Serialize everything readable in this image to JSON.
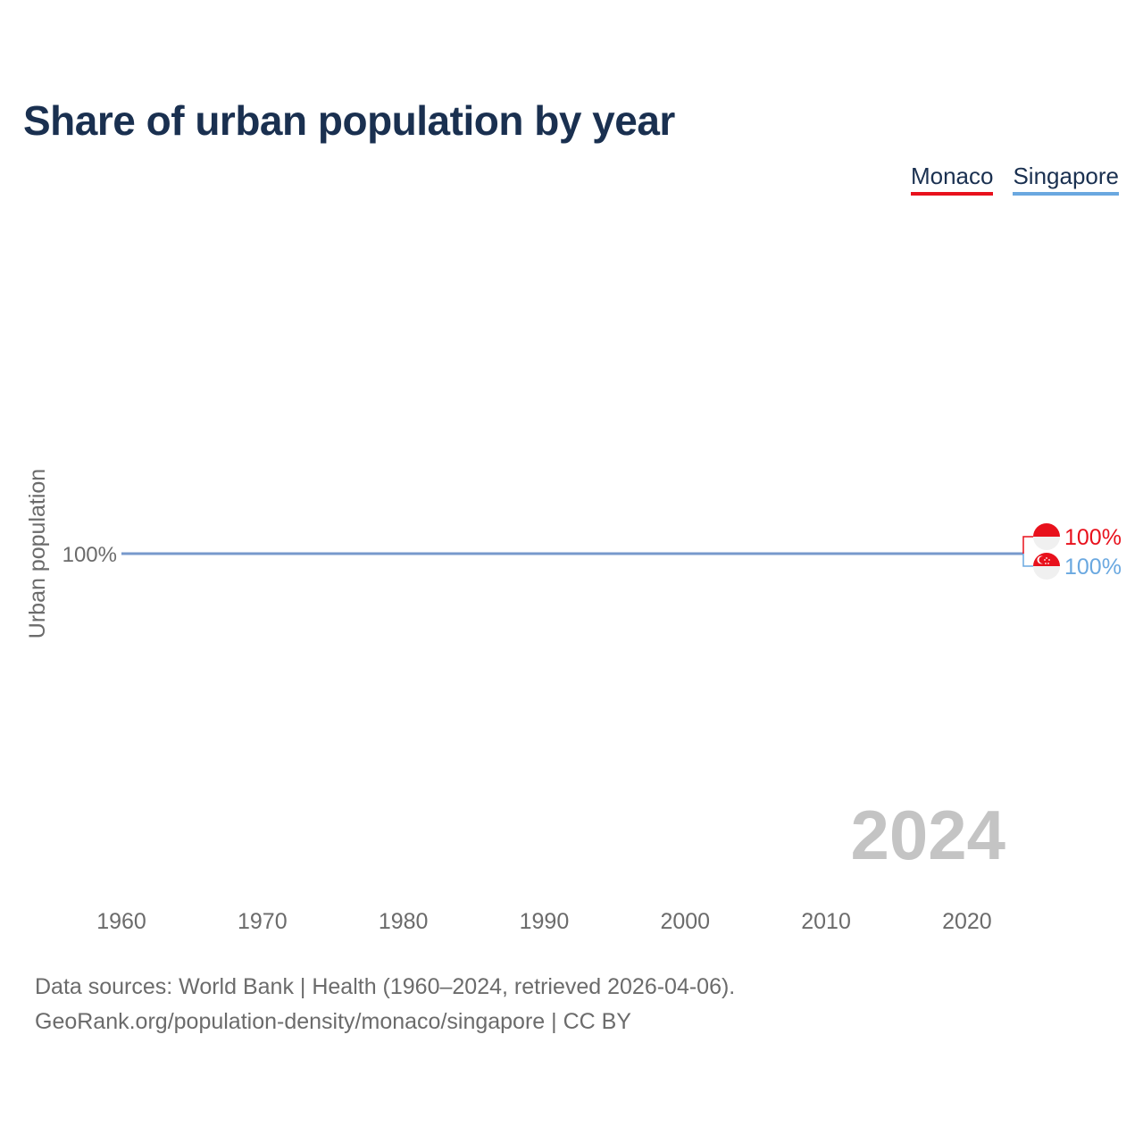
{
  "chart_data": {
    "type": "line",
    "title": "Share of urban population by year",
    "ylabel": "Urban population",
    "xlabel": "",
    "x_ticks": [
      1960,
      1970,
      1980,
      1990,
      2000,
      2010,
      2020
    ],
    "y_ticks": [
      100
    ],
    "y_tick_labels": [
      "100%"
    ],
    "xlim": [
      1960,
      2024
    ],
    "ylim": [
      0,
      200
    ],
    "year_watermark": "2024",
    "series": [
      {
        "name": "Monaco",
        "color": "#e8111c",
        "x": [
          1960,
          2024
        ],
        "values": [
          100,
          100
        ],
        "end_label": "100%",
        "flag": "monaco-flag-icon"
      },
      {
        "name": "Singapore",
        "color": "#6aa8e0",
        "x": [
          1960,
          2024
        ],
        "values": [
          100,
          100
        ],
        "end_label": "100%",
        "flag": "singapore-flag-icon"
      }
    ],
    "legend": [
      "Monaco",
      "Singapore"
    ]
  },
  "footer": {
    "sources": "Data sources: World Bank | Health (1960–2024, retrieved 2026-04-06).",
    "attribution": "GeoRank.org/population-density/monaco/singapore | CC BY"
  }
}
